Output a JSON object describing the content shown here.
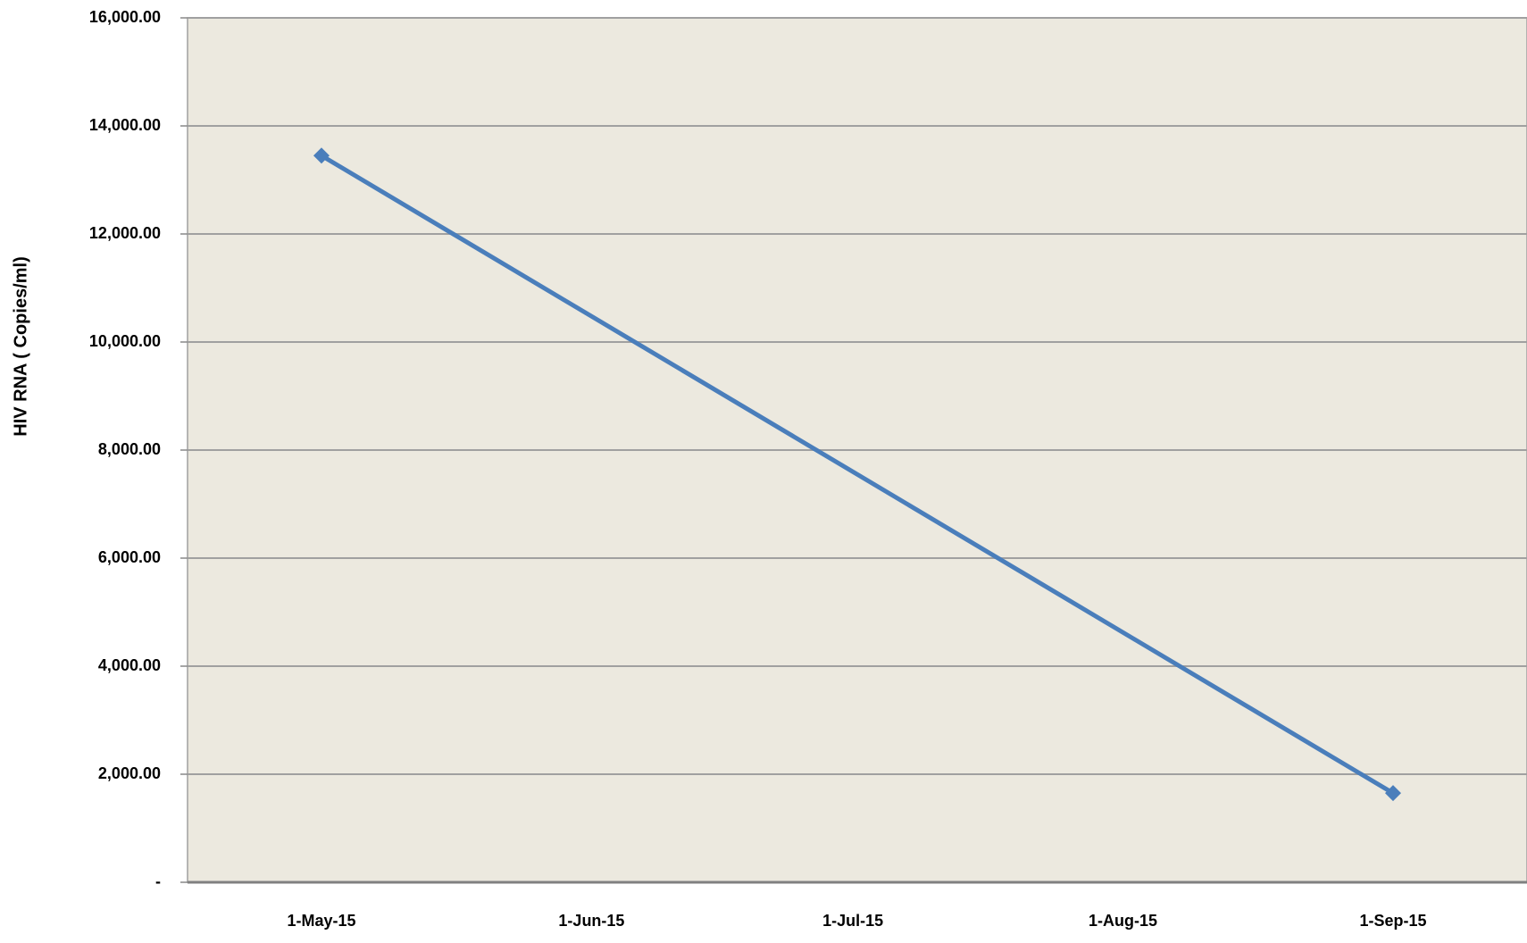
{
  "chart_data": {
    "type": "line",
    "y_axis_label": "HIV RNA ( Copies/ml)",
    "x": [
      "1-May-15",
      "1-Sep-15"
    ],
    "series": [
      {
        "name": "HIV RNA",
        "color": "#4a7ebb",
        "values": [
          13450,
          1650
        ]
      }
    ],
    "xticks": [
      "1-May-15",
      "1-Jun-15",
      "1-Jul-15",
      "1-Aug-15",
      "1-Sep-15"
    ],
    "ylim": [
      0,
      16000
    ],
    "yticks": [
      {
        "value": 0,
        "label": "-"
      },
      {
        "value": 2000,
        "label": "2,000.00"
      },
      {
        "value": 4000,
        "label": "4,000.00"
      },
      {
        "value": 6000,
        "label": "6,000.00"
      },
      {
        "value": 8000,
        "label": "8,000.00"
      },
      {
        "value": 10000,
        "label": "10,000.00"
      },
      {
        "value": 12000,
        "label": "12,000.00"
      },
      {
        "value": 14000,
        "label": "14,000.00"
      },
      {
        "value": 16000,
        "label": "16,000.00"
      }
    ],
    "grid": true,
    "plot_background": "#ece9df"
  }
}
